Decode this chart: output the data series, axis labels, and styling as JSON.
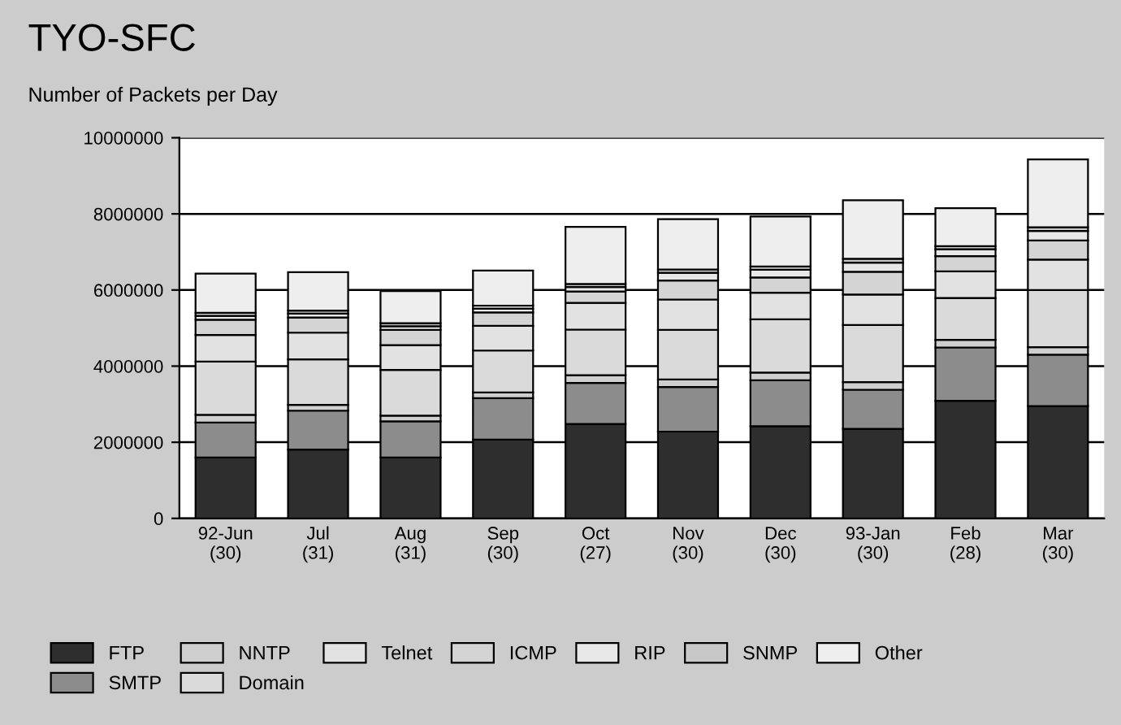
{
  "chart_data": {
    "type": "bar",
    "stacked": true,
    "title": "TYO-SFC",
    "subtitle": "Number of Packets per Day",
    "categories": [
      "92-Jun\n(30)",
      "Jul\n(31)",
      "Aug\n(31)",
      "Sep\n(30)",
      "Oct\n(27)",
      "Nov\n(30)",
      "Dec\n(30)",
      "93-Jan\n(30)",
      "Feb\n(28)",
      "Mar\n(30)"
    ],
    "series": [
      {
        "name": "FTP",
        "color": "#2e2e2e",
        "values": [
          1600000,
          1810000,
          1600000,
          2070000,
          2480000,
          2280000,
          2420000,
          2350000,
          3090000,
          2950000
        ]
      },
      {
        "name": "SMTP",
        "color": "#8c8c8c",
        "values": [
          920000,
          1020000,
          950000,
          1090000,
          1080000,
          1170000,
          1210000,
          1030000,
          1400000,
          1350000
        ]
      },
      {
        "name": "NNTP",
        "color": "#cfcfcf",
        "values": [
          200000,
          150000,
          150000,
          150000,
          200000,
          200000,
          200000,
          200000,
          200000,
          200000
        ]
      },
      {
        "name": "Domain",
        "color": "#dadada",
        "values": [
          1400000,
          1200000,
          1200000,
          1100000,
          1200000,
          1300000,
          1400000,
          1500000,
          1100000,
          1500000
        ]
      },
      {
        "name": "Telnet",
        "color": "#e2e2e2",
        "values": [
          700000,
          700000,
          650000,
          650000,
          700000,
          800000,
          700000,
          800000,
          700000,
          800000
        ]
      },
      {
        "name": "ICMP",
        "color": "#d4d4d4",
        "values": [
          400000,
          400000,
          400000,
          350000,
          300000,
          500000,
          400000,
          600000,
          400000,
          500000
        ]
      },
      {
        "name": "RIP",
        "color": "#e8e8e8",
        "values": [
          100000,
          100000,
          100000,
          100000,
          120000,
          200000,
          200000,
          240000,
          180000,
          250000
        ]
      },
      {
        "name": "SNMP",
        "color": "#c8c8c8",
        "values": [
          80000,
          80000,
          80000,
          80000,
          80000,
          90000,
          90000,
          100000,
          80000,
          100000
        ]
      },
      {
        "name": "Other",
        "color": "#eeeeee",
        "values": [
          1030000,
          1010000,
          840000,
          920000,
          1500000,
          1320000,
          1310000,
          1540000,
          1000000,
          1780000
        ]
      }
    ],
    "ylim": [
      0,
      10000000
    ],
    "yticks": [
      0,
      2000000,
      4000000,
      6000000,
      8000000,
      10000000
    ],
    "grid": "y",
    "legend": "bottom"
  }
}
